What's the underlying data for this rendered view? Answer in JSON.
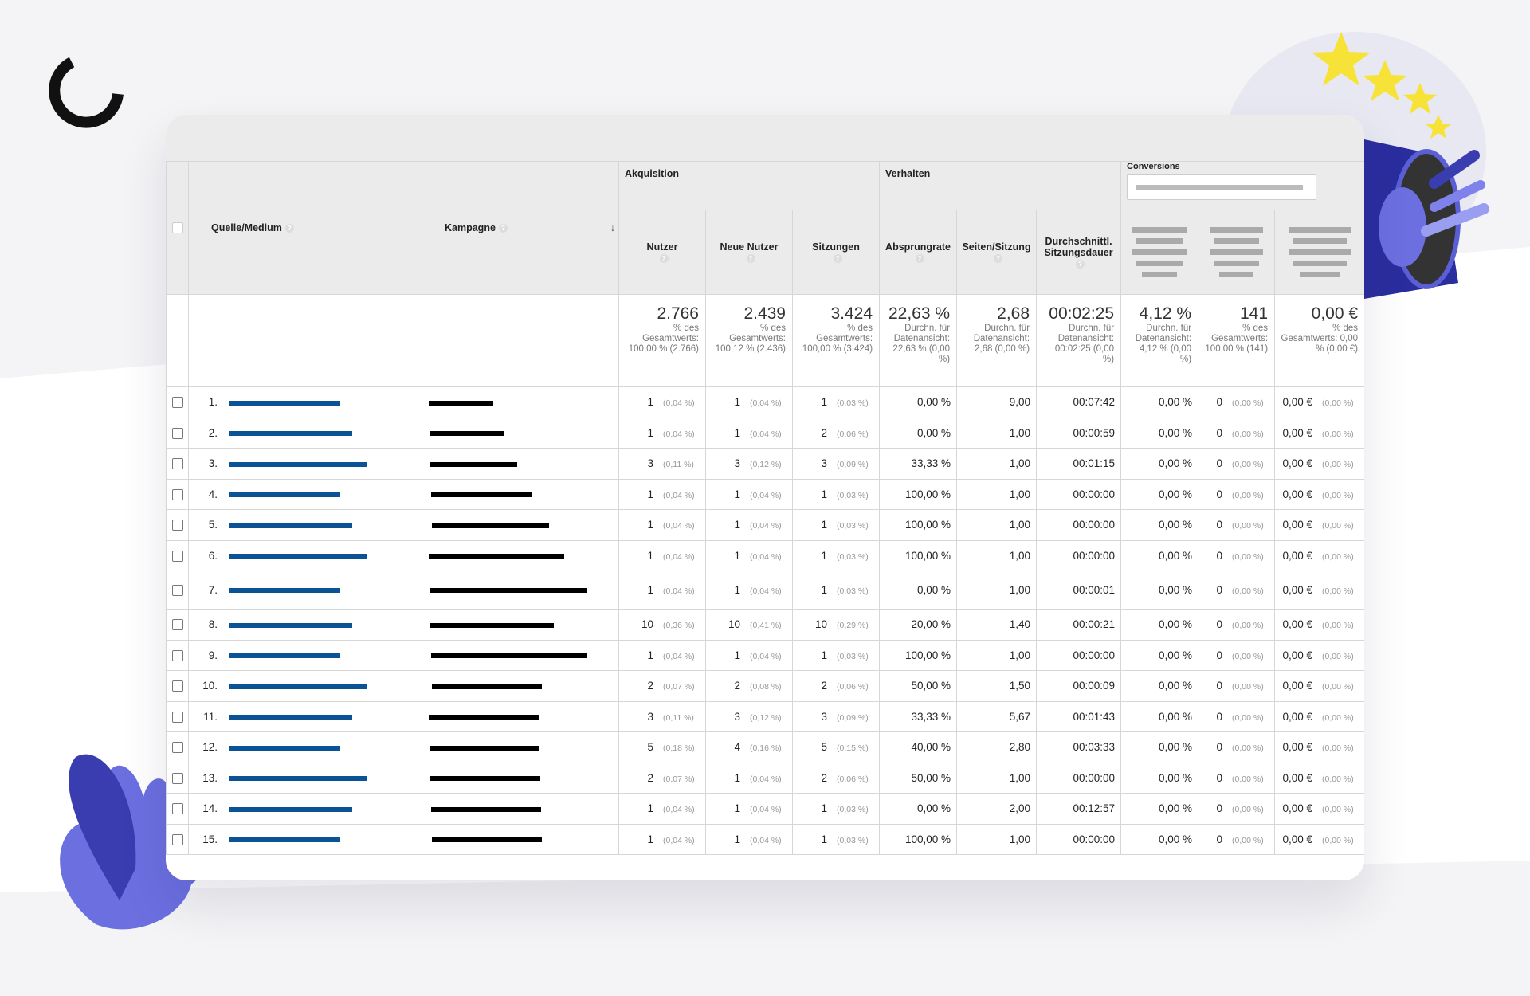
{
  "header": {
    "dimensions": [
      "Quelle/Medium",
      "Kampagne"
    ],
    "groups": [
      "Akquisition",
      "Verhalten",
      "Conversions"
    ],
    "metrics": [
      "Nutzer",
      "Neue Nutzer",
      "Sitzungen",
      "Absprungrate",
      "Seiten/Sitzung",
      "Durchschnittl. Sitzungsdauer"
    ]
  },
  "totals": [
    {
      "value": "2.766",
      "note": "% des Gesamtwerts: 100,00 % (2.766)"
    },
    {
      "value": "2.439",
      "note": "% des Gesamtwerts: 100,12 % (2.436)"
    },
    {
      "value": "3.424",
      "note": "% des Gesamtwerts: 100,00 % (3.424)"
    },
    {
      "value": "22,63 %",
      "note": "Durchn. für Datenansicht: 22,63 % (0,00 %)"
    },
    {
      "value": "2,68",
      "note": "Durchn. für Datenansicht: 2,68 (0,00 %)"
    },
    {
      "value": "00:02:25",
      "note": "Durchn. für Datenansicht: 00:02:25 (0,00 %)"
    },
    {
      "value": "4,12 %",
      "note": "Durchn. für Datenansicht: 4,12 % (0,00 %)"
    },
    {
      "value": "141",
      "note": "% des Gesamtwerts: 100,00 % (141)"
    },
    {
      "value": "0,00 €",
      "note": "% des Gesamtwerts: 0,00 % (0,00 €)"
    }
  ],
  "rows": [
    {
      "index": "1.",
      "cells": [
        [
          "1",
          "(0,04 %)"
        ],
        [
          "1",
          "(0,04 %)"
        ],
        [
          "1",
          "(0,03 %)"
        ],
        "0,00 %",
        "9,00",
        "00:07:42",
        "0,00 %",
        [
          "0",
          "(0,00 %)"
        ],
        [
          "0,00 €",
          "(0,00 %)"
        ]
      ]
    },
    {
      "index": "2.",
      "cells": [
        [
          "1",
          "(0,04 %)"
        ],
        [
          "1",
          "(0,04 %)"
        ],
        [
          "2",
          "(0,06 %)"
        ],
        "0,00 %",
        "1,00",
        "00:00:59",
        "0,00 %",
        [
          "0",
          "(0,00 %)"
        ],
        [
          "0,00 €",
          "(0,00 %)"
        ]
      ]
    },
    {
      "index": "3.",
      "cells": [
        [
          "3",
          "(0,11 %)"
        ],
        [
          "3",
          "(0,12 %)"
        ],
        [
          "3",
          "(0,09 %)"
        ],
        "33,33 %",
        "1,00",
        "00:01:15",
        "0,00 %",
        [
          "0",
          "(0,00 %)"
        ],
        [
          "0,00 €",
          "(0,00 %)"
        ]
      ]
    },
    {
      "index": "4.",
      "cells": [
        [
          "1",
          "(0,04 %)"
        ],
        [
          "1",
          "(0,04 %)"
        ],
        [
          "1",
          "(0,03 %)"
        ],
        "100,00 %",
        "1,00",
        "00:00:00",
        "0,00 %",
        [
          "0",
          "(0,00 %)"
        ],
        [
          "0,00 €",
          "(0,00 %)"
        ]
      ]
    },
    {
      "index": "5.",
      "cells": [
        [
          "1",
          "(0,04 %)"
        ],
        [
          "1",
          "(0,04 %)"
        ],
        [
          "1",
          "(0,03 %)"
        ],
        "100,00 %",
        "1,00",
        "00:00:00",
        "0,00 %",
        [
          "0",
          "(0,00 %)"
        ],
        [
          "0,00 €",
          "(0,00 %)"
        ]
      ]
    },
    {
      "index": "6.",
      "cells": [
        [
          "1",
          "(0,04 %)"
        ],
        [
          "1",
          "(0,04 %)"
        ],
        [
          "1",
          "(0,03 %)"
        ],
        "100,00 %",
        "1,00",
        "00:00:00",
        "0,00 %",
        [
          "0",
          "(0,00 %)"
        ],
        [
          "0,00 €",
          "(0,00 %)"
        ]
      ]
    },
    {
      "index": "7.",
      "cells": [
        [
          "1",
          "(0,04 %)"
        ],
        [
          "1",
          "(0,04 %)"
        ],
        [
          "1",
          "(0,03 %)"
        ],
        "0,00 %",
        "1,00",
        "00:00:01",
        "0,00 %",
        [
          "0",
          "(0,00 %)"
        ],
        [
          "0,00 €",
          "(0,00 %)"
        ]
      ]
    },
    {
      "index": "8.",
      "cells": [
        [
          "10",
          "(0,36 %)"
        ],
        [
          "10",
          "(0,41 %)"
        ],
        [
          "10",
          "(0,29 %)"
        ],
        "20,00 %",
        "1,40",
        "00:00:21",
        "0,00 %",
        [
          "0",
          "(0,00 %)"
        ],
        [
          "0,00 €",
          "(0,00 %)"
        ]
      ]
    },
    {
      "index": "9.",
      "cells": [
        [
          "1",
          "(0,04 %)"
        ],
        [
          "1",
          "(0,04 %)"
        ],
        [
          "1",
          "(0,03 %)"
        ],
        "100,00 %",
        "1,00",
        "00:00:00",
        "0,00 %",
        [
          "0",
          "(0,00 %)"
        ],
        [
          "0,00 €",
          "(0,00 %)"
        ]
      ]
    },
    {
      "index": "10.",
      "cells": [
        [
          "2",
          "(0,07 %)"
        ],
        [
          "2",
          "(0,08 %)"
        ],
        [
          "2",
          "(0,06 %)"
        ],
        "50,00 %",
        "1,50",
        "00:00:09",
        "0,00 %",
        [
          "0",
          "(0,00 %)"
        ],
        [
          "0,00 €",
          "(0,00 %)"
        ]
      ]
    },
    {
      "index": "11.",
      "cells": [
        [
          "3",
          "(0,11 %)"
        ],
        [
          "3",
          "(0,12 %)"
        ],
        [
          "3",
          "(0,09 %)"
        ],
        "33,33 %",
        "5,67",
        "00:01:43",
        "0,00 %",
        [
          "0",
          "(0,00 %)"
        ],
        [
          "0,00 €",
          "(0,00 %)"
        ]
      ]
    },
    {
      "index": "12.",
      "cells": [
        [
          "5",
          "(0,18 %)"
        ],
        [
          "4",
          "(0,16 %)"
        ],
        [
          "5",
          "(0,15 %)"
        ],
        "40,00 %",
        "2,80",
        "00:03:33",
        "0,00 %",
        [
          "0",
          "(0,00 %)"
        ],
        [
          "0,00 €",
          "(0,00 %)"
        ]
      ]
    },
    {
      "index": "13.",
      "cells": [
        [
          "2",
          "(0,07 %)"
        ],
        [
          "1",
          "(0,04 %)"
        ],
        [
          "2",
          "(0,06 %)"
        ],
        "50,00 %",
        "1,00",
        "00:00:00",
        "0,00 %",
        [
          "0",
          "(0,00 %)"
        ],
        [
          "0,00 €",
          "(0,00 %)"
        ]
      ]
    },
    {
      "index": "14.",
      "cells": [
        [
          "1",
          "(0,04 %)"
        ],
        [
          "1",
          "(0,04 %)"
        ],
        [
          "1",
          "(0,03 %)"
        ],
        "0,00 %",
        "2,00",
        "00:12:57",
        "0,00 %",
        [
          "0",
          "(0,00 %)"
        ],
        [
          "0,00 €",
          "(0,00 %)"
        ]
      ]
    },
    {
      "index": "15.",
      "cells": [
        [
          "1",
          "(0,04 %)"
        ],
        [
          "1",
          "(0,04 %)"
        ],
        [
          "1",
          "(0,03 %)"
        ],
        "100,00 %",
        "1,00",
        "00:00:00",
        "0,00 %",
        [
          "0",
          "(0,00 %)"
        ],
        [
          "0,00 €",
          "(0,00 %)"
        ]
      ]
    }
  ]
}
